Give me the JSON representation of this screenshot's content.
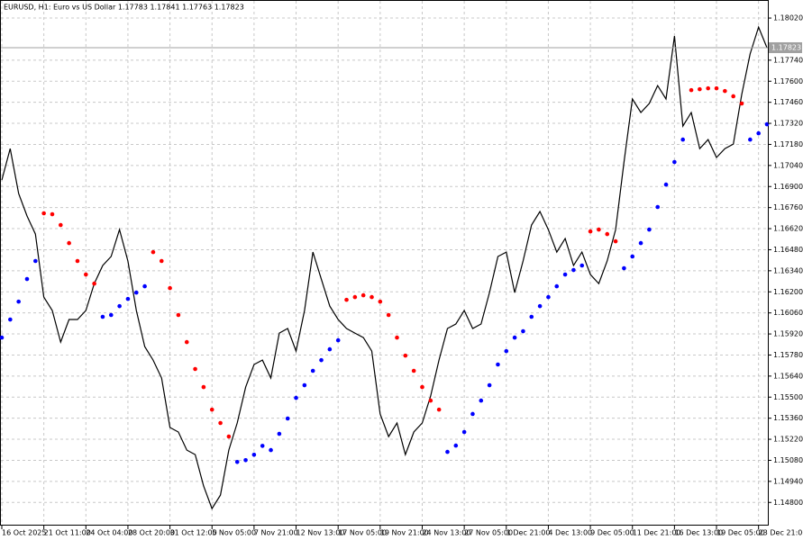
{
  "chart_data": {
    "type": "line",
    "title": "EURUSD, H1:  Euro vs US Dollar 1.17783 1.17841 1.17763 1.17823",
    "categories": [
      "16 Oct 2025",
      null,
      null,
      null,
      null,
      "21 Oct 11:00",
      null,
      null,
      null,
      null,
      "24 Oct 04:00",
      null,
      null,
      null,
      null,
      "28 Oct 20:00",
      null,
      null,
      null,
      null,
      "31 Oct 12:00",
      null,
      null,
      null,
      null,
      "5 Nov 05:00",
      null,
      null,
      null,
      null,
      "7 Nov 21:00",
      null,
      null,
      null,
      null,
      "12 Nov 13:00",
      null,
      null,
      null,
      null,
      "17 Nov 05:00",
      null,
      null,
      null,
      null,
      "19 Nov 21:00",
      null,
      null,
      null,
      null,
      "24 Nov 13:00",
      null,
      null,
      null,
      null,
      "27 Nov 05:00",
      null,
      null,
      null,
      null,
      "1 Dec 21:00",
      null,
      null,
      null,
      null,
      "4 Dec 13:00",
      null,
      null,
      null,
      null,
      "9 Dec 05:00",
      null,
      null,
      null,
      null,
      "11 Dec 21:00",
      null,
      null,
      null,
      null,
      "16 Dec 13:00",
      null,
      null,
      null,
      null,
      "19 Dec 05:00",
      null,
      null,
      null,
      null,
      "23 Dec 21:00",
      null
    ],
    "series": [
      {
        "mode": "line",
        "color": "#000000",
        "values": [
          1.16943,
          1.17152,
          1.16853,
          1.16704,
          1.16584,
          1.16165,
          1.16076,
          1.15866,
          1.16016,
          1.16016,
          1.16076,
          1.16255,
          1.16375,
          1.16435,
          1.16614,
          1.16405,
          1.16076,
          1.15836,
          1.15746,
          1.15627,
          1.15298,
          1.15268,
          1.15148,
          1.15118,
          1.14909,
          1.14759,
          1.14849,
          1.15148,
          1.15328,
          1.15567,
          1.15717,
          1.15746,
          1.15627,
          1.15926,
          1.15956,
          1.15806,
          1.16076,
          1.16464,
          1.16285,
          1.16105,
          1.16016,
          1.15956,
          1.15926,
          1.15896,
          1.15806,
          1.15388,
          1.15238,
          1.15328,
          1.15118,
          1.15268,
          1.15328,
          1.15507,
          1.15746,
          1.15956,
          1.15986,
          1.16076,
          1.15956,
          1.15986,
          1.16195,
          1.16435,
          1.16464,
          1.16195,
          1.16405,
          1.16644,
          1.16734,
          1.16614,
          1.16464,
          1.16554,
          1.16375,
          1.16464,
          1.16315,
          1.16255,
          1.16405,
          1.16614,
          1.17063,
          1.17482,
          1.17392,
          1.17452,
          1.17571,
          1.17482,
          1.179,
          1.17302,
          1.17392,
          1.17152,
          1.17212,
          1.17093,
          1.17152,
          1.17182,
          1.17511,
          1.17781,
          1.1796,
          1.17823
        ]
      },
      {
        "mode": "dots",
        "color": "#ff0000",
        "values": [
          null,
          null,
          null,
          null,
          null,
          1.16722,
          1.16716,
          1.16644,
          1.16524,
          1.16405,
          1.16315,
          1.16255,
          null,
          null,
          null,
          null,
          null,
          null,
          1.16464,
          1.16405,
          1.16225,
          1.16046,
          1.15866,
          1.15687,
          1.15567,
          1.15417,
          1.15328,
          1.15238,
          null,
          null,
          null,
          null,
          null,
          null,
          null,
          null,
          null,
          null,
          null,
          null,
          null,
          1.16147,
          1.16165,
          1.16177,
          1.16165,
          1.16135,
          1.16046,
          1.15896,
          1.15776,
          1.15675,
          1.15567,
          1.15477,
          1.15417,
          null,
          null,
          null,
          null,
          null,
          null,
          null,
          null,
          null,
          null,
          null,
          null,
          null,
          null,
          null,
          null,
          null,
          1.16602,
          1.16614,
          1.16584,
          1.16536,
          null,
          null,
          null,
          null,
          null,
          null,
          null,
          null,
          1.17541,
          1.17547,
          1.17553,
          1.17553,
          1.17535,
          1.175,
          1.17452,
          null,
          null,
          null
        ]
      },
      {
        "mode": "dots",
        "color": "#0000ff",
        "values": [
          1.15896,
          1.16016,
          1.16135,
          1.16285,
          1.16405,
          null,
          null,
          null,
          null,
          null,
          null,
          null,
          1.16034,
          1.16046,
          1.16105,
          1.16153,
          1.16195,
          1.16237,
          null,
          null,
          null,
          null,
          null,
          null,
          null,
          null,
          null,
          null,
          1.15069,
          1.15081,
          1.15117,
          1.15176,
          1.15148,
          1.15256,
          1.15358,
          1.15495,
          1.15579,
          1.15675,
          1.15746,
          1.15818,
          1.15878,
          null,
          null,
          null,
          null,
          null,
          null,
          null,
          null,
          null,
          null,
          null,
          null,
          1.15136,
          1.15178,
          1.15268,
          1.15388,
          1.15477,
          1.15579,
          1.15717,
          1.15806,
          1.15896,
          1.15938,
          1.16034,
          1.16105,
          1.16165,
          1.16237,
          1.16315,
          1.16345,
          1.16375,
          null,
          null,
          null,
          null,
          1.16357,
          1.16435,
          1.16524,
          1.16614,
          1.16764,
          1.16913,
          1.17063,
          1.17212,
          null,
          null,
          null,
          null,
          null,
          null,
          null,
          1.17212,
          1.17254,
          1.17314
        ]
      }
    ],
    "price_line": 1.17823,
    "ylim": [
      1.14652,
      1.1814
    ],
    "yticks": [
      {
        "value": 1.1802,
        "label": "1.18020"
      },
      {
        "value": 1.1774,
        "label": "1.17740"
      },
      {
        "value": 1.176,
        "label": "1.17600"
      },
      {
        "value": 1.1746,
        "label": "1.17460"
      },
      {
        "value": 1.1732,
        "label": "1.17320"
      },
      {
        "value": 1.1718,
        "label": "1.17180"
      },
      {
        "value": 1.1704,
        "label": "1.17040"
      },
      {
        "value": 1.169,
        "label": "1.16900"
      },
      {
        "value": 1.1676,
        "label": "1.16760"
      },
      {
        "value": 1.1662,
        "label": "1.16620"
      },
      {
        "value": 1.1648,
        "label": "1.16480"
      },
      {
        "value": 1.1634,
        "label": "1.16340"
      },
      {
        "value": 1.162,
        "label": "1.16200"
      },
      {
        "value": 1.1606,
        "label": "1.16060"
      },
      {
        "value": 1.1592,
        "label": "1.15920"
      },
      {
        "value": 1.1578,
        "label": "1.15780"
      },
      {
        "value": 1.1564,
        "label": "1.15640"
      },
      {
        "value": 1.155,
        "label": "1.15500"
      },
      {
        "value": 1.1536,
        "label": "1.15360"
      },
      {
        "value": 1.1522,
        "label": "1.15220"
      },
      {
        "value": 1.1508,
        "label": "1.15080"
      },
      {
        "value": 1.1494,
        "label": "1.14940"
      },
      {
        "value": 1.148,
        "label": "1.14800"
      }
    ],
    "grid": true
  }
}
